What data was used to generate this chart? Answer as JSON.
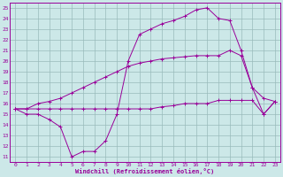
{
  "bg_color": "#cce8e8",
  "line_color": "#990099",
  "grid_color": "#99bbbb",
  "xlabel": "Windchill (Refroidissement éolien,°C)",
  "xlim": [
    -0.5,
    23.5
  ],
  "ylim": [
    10.5,
    25.5
  ],
  "yticks": [
    11,
    12,
    13,
    14,
    15,
    16,
    17,
    18,
    19,
    20,
    21,
    22,
    23,
    24,
    25
  ],
  "xticks": [
    0,
    1,
    2,
    3,
    4,
    5,
    6,
    7,
    8,
    9,
    10,
    11,
    12,
    13,
    14,
    15,
    16,
    17,
    18,
    19,
    20,
    21,
    22,
    23
  ],
  "line1_x": [
    0,
    1,
    2,
    3,
    4,
    5,
    6,
    7,
    8,
    9,
    10,
    11,
    12,
    13,
    14,
    15,
    16,
    17,
    18,
    19,
    20,
    21,
    22,
    23
  ],
  "line1_y": [
    15.5,
    15.5,
    16.0,
    16.2,
    16.5,
    17.0,
    17.5,
    18.0,
    18.5,
    19.0,
    19.5,
    19.8,
    20.0,
    20.2,
    20.3,
    20.4,
    20.5,
    20.5,
    20.5,
    21.0,
    20.5,
    17.5,
    16.5,
    16.2
  ],
  "line2_x": [
    0,
    1,
    2,
    3,
    4,
    5,
    6,
    7,
    8,
    9,
    10,
    11,
    12,
    13,
    14,
    15,
    16,
    17,
    18,
    19,
    20,
    21,
    22,
    23
  ],
  "line2_y": [
    15.5,
    15.5,
    15.5,
    15.5,
    15.5,
    15.5,
    15.5,
    15.5,
    15.5,
    15.5,
    15.5,
    15.5,
    15.5,
    15.7,
    15.8,
    16.0,
    16.0,
    16.0,
    16.3,
    16.3,
    16.3,
    16.3,
    15.0,
    16.2
  ],
  "line3_x": [
    0,
    1,
    2,
    3,
    4,
    5,
    6,
    7,
    8,
    9,
    10,
    11,
    12,
    13,
    14,
    15,
    16,
    17,
    18,
    19,
    20,
    21,
    22,
    23
  ],
  "line3_y": [
    15.5,
    15.0,
    15.0,
    14.5,
    13.8,
    11.0,
    11.5,
    11.5,
    12.5,
    15.0,
    20.0,
    22.5,
    23.0,
    23.5,
    23.8,
    24.2,
    24.8,
    25.0,
    24.0,
    23.8,
    21.0,
    17.5,
    15.0,
    16.2
  ]
}
